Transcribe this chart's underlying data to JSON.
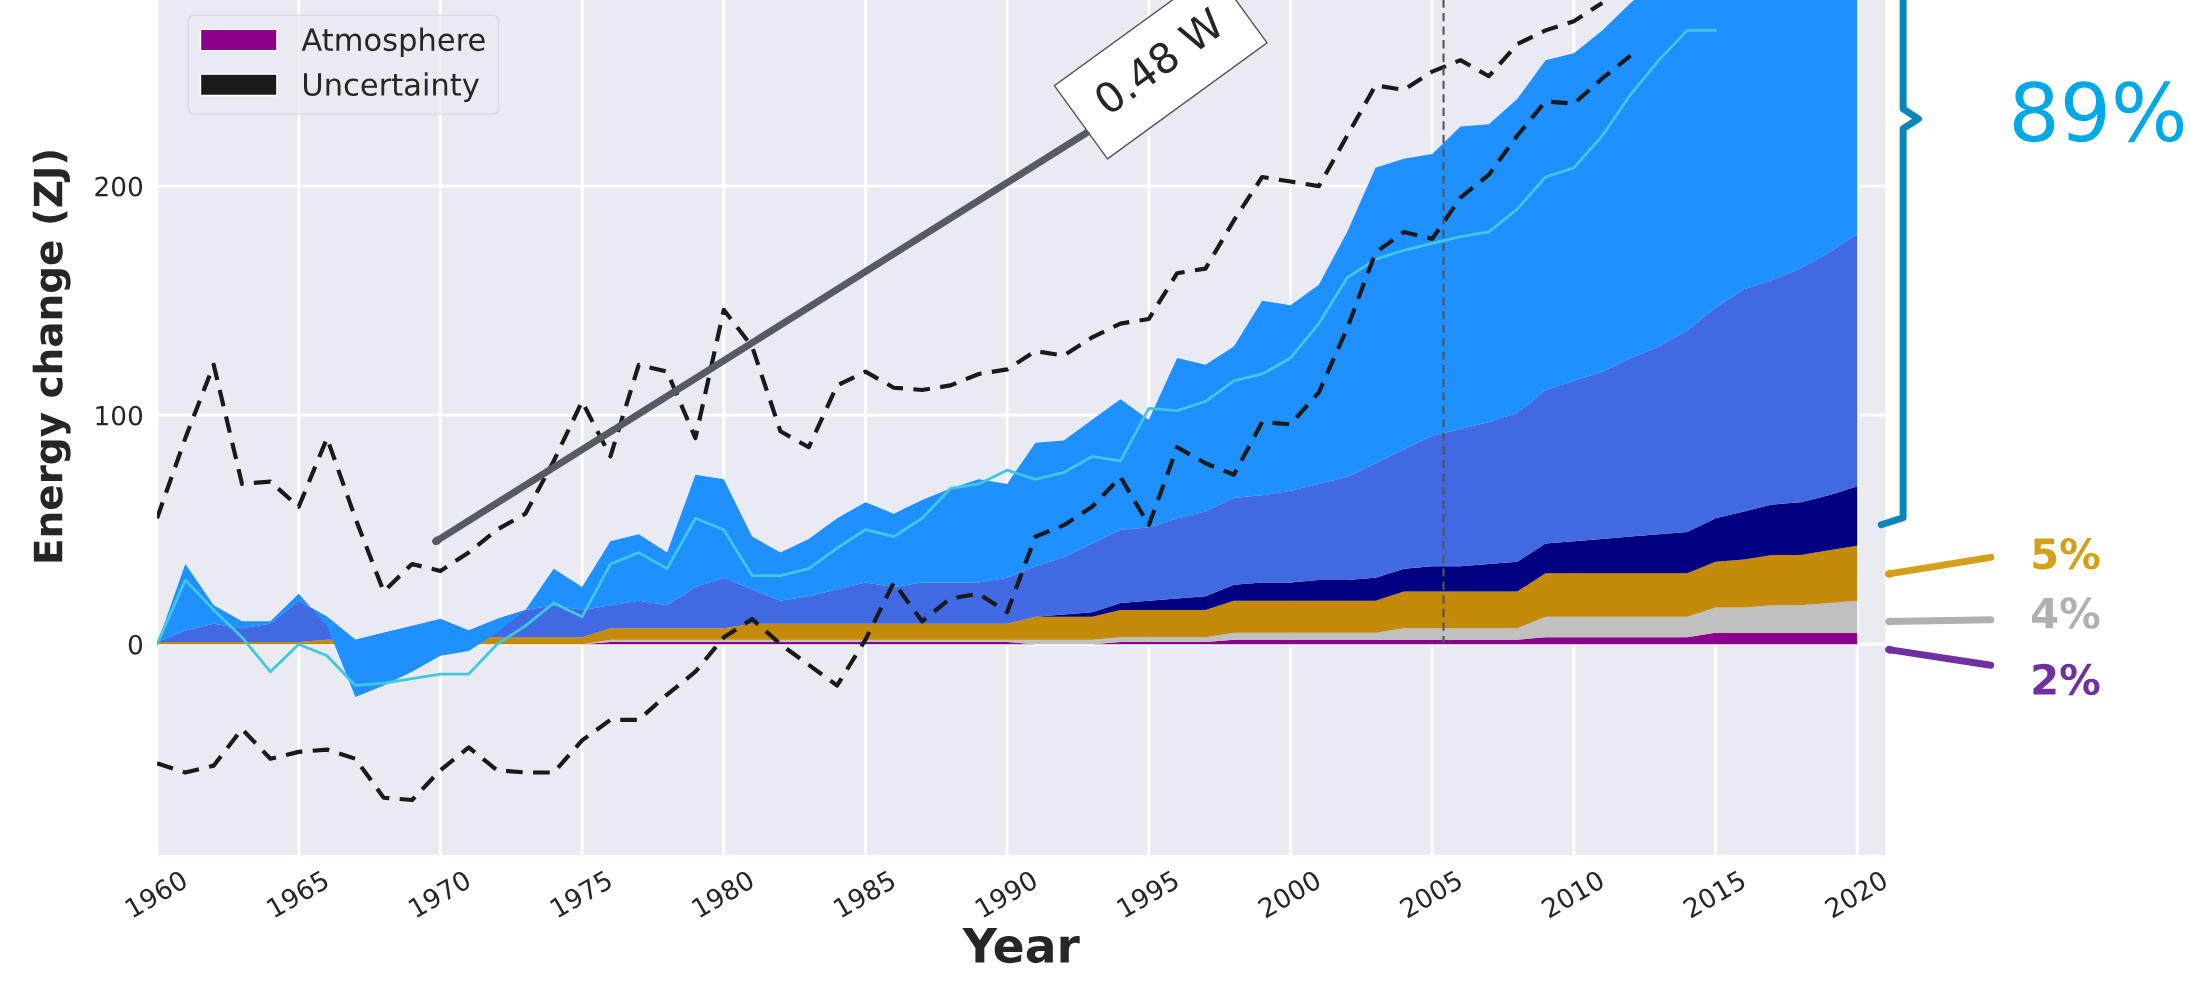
{
  "chart_data": {
    "type": "area",
    "stacked": true,
    "ylabel": "Energy change (ZJ)",
    "xlabel": "Year",
    "x": [
      1960,
      1961,
      1962,
      1963,
      1964,
      1965,
      1966,
      1967,
      1968,
      1969,
      1970,
      1971,
      1972,
      1973,
      1974,
      1975,
      1976,
      1977,
      1978,
      1979,
      1980,
      1981,
      1982,
      1983,
      1984,
      1985,
      1986,
      1987,
      1988,
      1989,
      1990,
      1991,
      1992,
      1993,
      1994,
      1995,
      1996,
      1997,
      1998,
      1999,
      2000,
      2001,
      2002,
      2003,
      2004,
      2005,
      2006,
      2007,
      2008,
      2009,
      2010,
      2011,
      2012,
      2013,
      2014,
      2015,
      2016,
      2017,
      2018,
      2019,
      2020
    ],
    "series": [
      {
        "name": "Atmosphere",
        "type": "area",
        "color": "#8b008b",
        "values": [
          0,
          0,
          0,
          0,
          0,
          0,
          0,
          0,
          0,
          0,
          0,
          0,
          0,
          0,
          0,
          0,
          1,
          1,
          1,
          1,
          1,
          1,
          1,
          1,
          1,
          1,
          1,
          1,
          1,
          1,
          1,
          0,
          0,
          0,
          1,
          1,
          1,
          1,
          2,
          2,
          2,
          2,
          2,
          2,
          2,
          2,
          2,
          2,
          2,
          3,
          3,
          3,
          3,
          3,
          3,
          5,
          5,
          5,
          5,
          5,
          5
        ]
      },
      {
        "type": "area",
        "color": "#c0c0c0",
        "values": [
          0,
          0,
          0,
          0,
          0,
          0,
          0,
          0,
          0,
          0,
          0,
          0,
          0,
          0,
          0,
          0,
          1,
          1,
          1,
          1,
          1,
          1,
          1,
          1,
          1,
          1,
          1,
          1,
          1,
          1,
          1,
          2,
          2,
          2,
          2,
          2,
          2,
          2,
          3,
          3,
          3,
          3,
          3,
          3,
          5,
          5,
          5,
          5,
          5,
          9,
          9,
          9,
          9,
          9,
          9,
          11,
          11,
          12,
          12,
          13,
          14
        ]
      },
      {
        "type": "area",
        "color": "#c48a0a",
        "values": [
          1,
          1,
          1,
          1,
          1,
          1,
          2,
          2,
          2,
          2,
          2,
          3,
          3,
          3,
          3,
          3,
          5,
          5,
          5,
          5,
          5,
          7,
          7,
          7,
          7,
          7,
          7,
          7,
          7,
          7,
          7,
          10,
          10,
          10,
          12,
          12,
          12,
          12,
          14,
          14,
          14,
          14,
          14,
          14,
          16,
          16,
          16,
          16,
          16,
          19,
          19,
          19,
          19,
          19,
          19,
          20,
          21,
          22,
          22,
          23,
          24
        ]
      },
      {
        "type": "area",
        "color": "#000080",
        "values": [
          0,
          0,
          0,
          0,
          0,
          0,
          0,
          0,
          0,
          0,
          0,
          0,
          0,
          0,
          0,
          0,
          0,
          0,
          0,
          0,
          0,
          0,
          0,
          0,
          0,
          0,
          0,
          0,
          0,
          0,
          0,
          0,
          1,
          2,
          3,
          4,
          5,
          6,
          7,
          8,
          8,
          9,
          9,
          10,
          10,
          11,
          11,
          12,
          13,
          13,
          14,
          15,
          16,
          17,
          18,
          19,
          21,
          22,
          23,
          24,
          26
        ]
      },
      {
        "type": "area",
        "color": "#4169e1",
        "values": [
          0,
          5,
          8,
          6,
          8,
          18,
          10,
          0,
          3,
          6,
          9,
          3,
          8,
          12,
          14,
          12,
          10,
          12,
          10,
          18,
          22,
          15,
          10,
          12,
          15,
          18,
          16,
          18,
          18,
          18,
          20,
          22,
          25,
          30,
          32,
          32,
          35,
          37,
          38,
          38,
          40,
          42,
          45,
          50,
          52,
          57,
          60,
          62,
          65,
          67,
          70,
          73,
          78,
          82,
          88,
          92,
          97,
          98,
          102,
          106,
          110
        ]
      },
      {
        "type": "area",
        "color": "#1e90ff",
        "values": [
          -1,
          29,
          8,
          3,
          1,
          3,
          -4,
          -25,
          -23,
          -20,
          -16,
          -9,
          -6,
          0,
          16,
          10,
          28,
          29,
          23,
          49,
          43,
          23,
          21,
          25,
          31,
          35,
          32,
          36,
          41,
          45,
          41,
          54,
          51,
          54,
          57,
          47,
          70,
          64,
          66,
          85,
          81,
          87,
          107,
          129,
          127,
          123,
          132,
          130,
          137,
          144,
          143,
          149,
          155,
          160,
          163,
          163,
          165,
          171,
          176,
          179,
          181
        ]
      },
      {
        "type": "line",
        "color": "#40c8e0",
        "line_style": "solid",
        "values": [
          0,
          28,
          15,
          3,
          -12,
          0,
          -5,
          -18,
          -17,
          -15,
          -13,
          -13,
          0,
          8,
          18,
          12,
          35,
          40,
          33,
          55,
          50,
          30,
          30,
          33,
          42,
          50,
          47,
          55,
          68,
          70,
          76,
          72,
          75,
          82,
          80,
          103,
          102,
          106,
          115,
          118,
          125,
          140,
          160,
          168,
          172,
          175,
          178,
          180,
          190,
          204,
          208,
          222,
          240,
          255,
          268,
          268,
          null,
          null,
          null,
          null,
          null
        ]
      },
      {
        "name": "Uncertainty",
        "type": "line",
        "color": "#1a1a1a",
        "line_style": "dashed",
        "values": [
          55,
          90,
          122,
          70,
          71,
          60,
          90,
          55,
          23,
          35,
          32,
          40,
          50,
          57,
          80,
          106,
          82,
          122,
          119,
          90,
          146,
          130,
          93,
          86,
          113,
          119,
          112,
          111,
          113,
          118,
          120,
          128,
          126,
          134,
          140,
          142,
          162,
          164,
          185,
          204,
          202,
          200,
          222,
          244,
          242,
          250,
          255,
          248,
          262,
          268,
          272,
          280,
          null,
          null,
          null,
          null,
          null,
          null,
          null,
          null,
          null
        ]
      },
      {
        "type": "line",
        "color": "#1a1a1a",
        "line_style": "dashed",
        "values": [
          -52,
          -56,
          -53,
          -37,
          -50,
          -47,
          -46,
          -50,
          -67,
          -68,
          -55,
          -45,
          -55,
          -56,
          -56,
          -42,
          -33,
          -33,
          -22,
          -12,
          3,
          11,
          0,
          -9,
          -18,
          2,
          27,
          10,
          20,
          22,
          14,
          47,
          52,
          60,
          73,
          52,
          86,
          79,
          74,
          97,
          96,
          110,
          138,
          171,
          180,
          177,
          195,
          205,
          222,
          237,
          236,
          247,
          257,
          null,
          null,
          null,
          null,
          null,
          null,
          null,
          null
        ]
      }
    ],
    "xlim": [
      1960,
      2021
    ],
    "xticks": [
      1960,
      1965,
      1970,
      1975,
      1980,
      1985,
      1990,
      1995,
      2000,
      2005,
      2010,
      2015,
      2020
    ],
    "ylim": [
      -92,
      400
    ],
    "yticks": [
      0,
      100,
      200
    ],
    "grid": true,
    "legend": "top left",
    "ref_lines": [
      {
        "axis": "x",
        "value": 2005.4,
        "color": "#555555",
        "line_style": "dashed"
      }
    ],
    "annotations": [
      "0.48 W",
      "89%",
      "5%",
      "4%",
      "2%"
    ]
  }
}
